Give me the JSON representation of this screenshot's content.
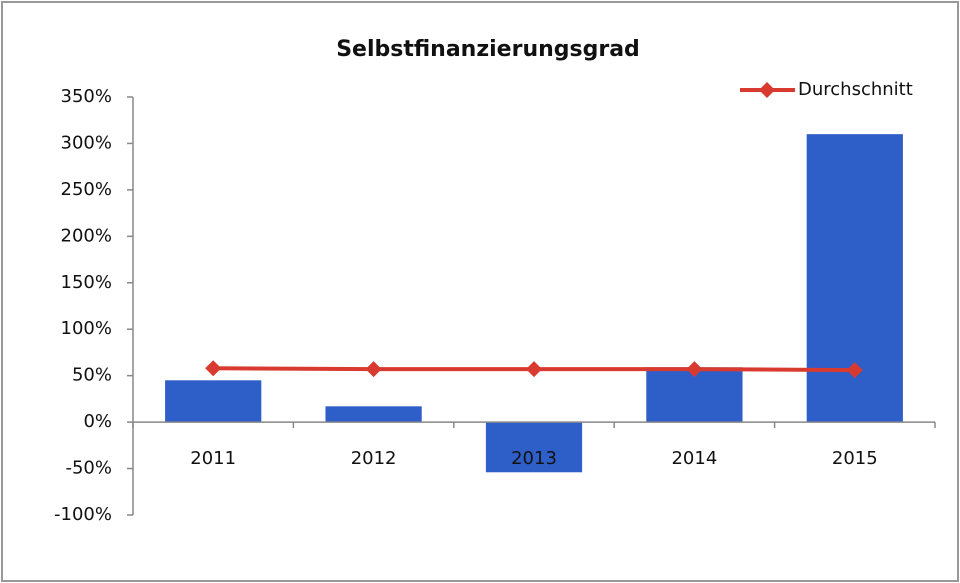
{
  "chart_data": {
    "type": "bar",
    "title": "Selbstfinanzierungsgrad",
    "categories": [
      "2011",
      "2012",
      "2013",
      "2014",
      "2015"
    ],
    "series": [
      {
        "color": "#2e5fc9",
        "values": [
          45,
          17,
          -54,
          59,
          310
        ]
      },
      {
        "name": "Durchschnitt",
        "type": "line",
        "color": "#d93a2f",
        "values": [
          58,
          57,
          57,
          57,
          56
        ]
      }
    ],
    "ylim": [
      -100,
      350
    ],
    "yticks": [
      {
        "value": -100,
        "label": "-100%"
      },
      {
        "value": -50,
        "label": "-50%"
      },
      {
        "value": 0,
        "label": "0%"
      },
      {
        "value": 50,
        "label": "50%"
      },
      {
        "value": 100,
        "label": "100%"
      },
      {
        "value": 150,
        "label": "150%"
      },
      {
        "value": 200,
        "label": "200%"
      },
      {
        "value": 250,
        "label": "250%"
      },
      {
        "value": 300,
        "label": "300%"
      },
      {
        "value": 350,
        "label": "350%"
      }
    ],
    "legend": "top-right",
    "grid": false
  }
}
